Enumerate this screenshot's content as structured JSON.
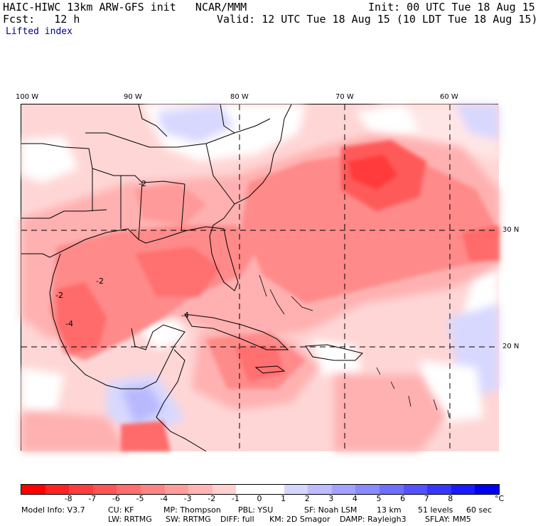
{
  "header": {
    "model_line": "HAIC-HIWC 13km ARW-GFS init   NCAR/MMM",
    "init": "Init: 00 UTC Tue 18 Aug 15",
    "fcst": "Fcst:   12 h",
    "valid": "Valid: 12 UTC Tue 18 Aug 15 (10 LDT Tue 18 Aug 15)",
    "field": "Lifted index"
  },
  "axes": {
    "lon_labels": [
      "100 W",
      "90 W",
      "80 W",
      "70 W",
      "60 W"
    ],
    "lat_labels": [
      "30 N",
      "20 N"
    ]
  },
  "colorbar": {
    "labels": [
      "-8",
      "-7",
      "-6",
      "-5",
      "-4",
      "-3",
      "-2",
      "-1",
      "0",
      "1",
      "2",
      "3",
      "4",
      "5",
      "6",
      "7",
      "8"
    ],
    "unit": "°C",
    "colors": [
      "#ff0000",
      "#ff2222",
      "#ff3d3d",
      "#ff5555",
      "#ff6d6d",
      "#ff8585",
      "#ff9d9d",
      "#ffb5b5",
      "#ffd0d0",
      "#ffffff",
      "#ffffff",
      "#d6d6ff",
      "#bcbcff",
      "#a2a2ff",
      "#8a8aff",
      "#6e6eff",
      "#5252ff",
      "#3636ff",
      "#1a1aff",
      "#0000f0"
    ]
  },
  "footer": {
    "line1": [
      "Model Info: V3.7",
      "CU: KF",
      "MP: Thompson",
      "PBL: YSU",
      "SF: Noah LSM",
      "13 km",
      "51 levels",
      "60 sec"
    ],
    "line2": [
      "LW: RRTMG",
      "SW: RRTMG",
      "DIFF: full",
      "KM: 2D Smagor",
      "DAMP: Rayleigh3",
      "SFLAY: MM5"
    ]
  },
  "map": {
    "field_colors": {
      "strong": "#ff5a5a",
      "medium": "#ff8a8a",
      "light": "#ffb0b0",
      "pale": "#ffd6d6",
      "neutral": "#ffffff",
      "blue_light": "#d8d8ff",
      "blue_mid": "#b8b8ff"
    },
    "contour_labels": [
      "-2",
      "-2",
      "-4",
      "-2",
      "-4"
    ]
  }
}
